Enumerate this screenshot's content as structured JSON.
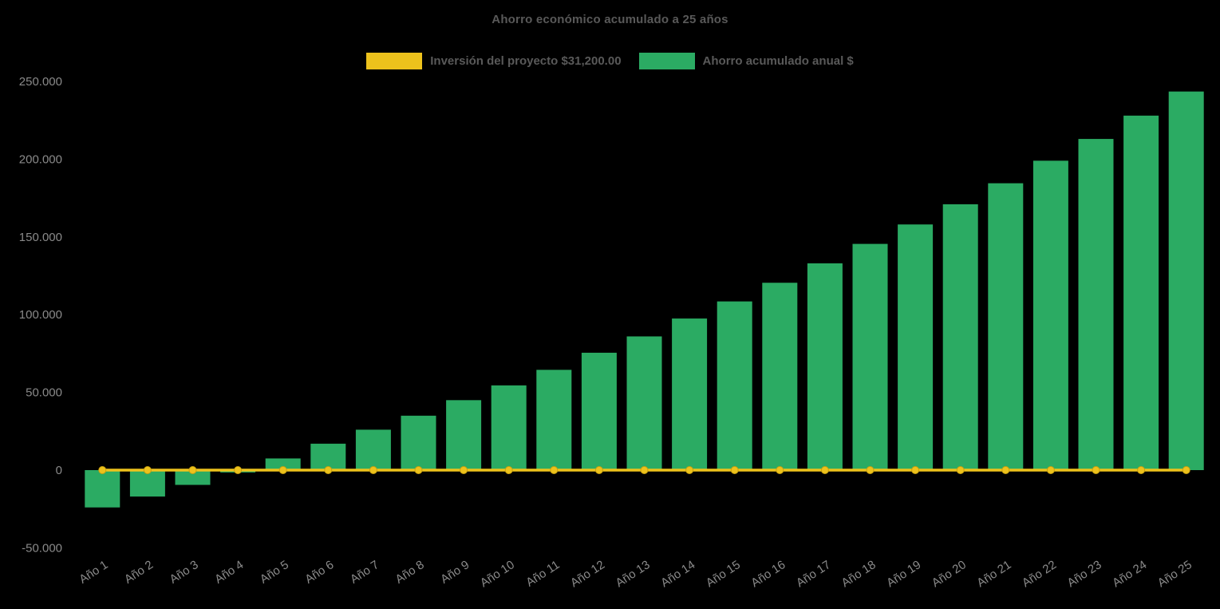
{
  "chart_data": {
    "type": "bar",
    "title": "Ahorro económico acumulado a 25 años",
    "legend_position": "top",
    "grid": false,
    "legend": [
      {
        "label": "Inversión del proyecto $31,200.00",
        "color": "#edc21c",
        "series_type": "line"
      },
      {
        "label": "Ahorro acumulado anual $",
        "color": "#2bab63",
        "series_type": "bar"
      }
    ],
    "categories": [
      "Año 1",
      "Año 2",
      "Año 3",
      "Año 4",
      "Año 5",
      "Año 6",
      "Año 7",
      "Año 8",
      "Año 9",
      "Año 10",
      "Año 11",
      "Año 12",
      "Año 13",
      "Año 14",
      "Año 15",
      "Año 16",
      "Año 17",
      "Año 18",
      "Año 19",
      "Año 20",
      "Año 21",
      "Año 22",
      "Año 23",
      "Año 24",
      "Año 25"
    ],
    "series": [
      {
        "name": "Inversión del proyecto $31,200.00",
        "type": "line",
        "values": [
          0,
          0,
          0,
          0,
          0,
          0,
          0,
          0,
          0,
          0,
          0,
          0,
          0,
          0,
          0,
          0,
          0,
          0,
          0,
          0,
          0,
          0,
          0,
          0,
          0
        ]
      },
      {
        "name": "Ahorro acumulado anual $",
        "type": "bar",
        "values": [
          -24000,
          -17000,
          -9500,
          -1500,
          7500,
          17000,
          26000,
          35000,
          45000,
          54500,
          64500,
          75500,
          86000,
          97500,
          108500,
          120500,
          133000,
          145500,
          158000,
          171000,
          184500,
          199000,
          213000,
          228000,
          243500
        ]
      }
    ],
    "ylim": [
      -50000,
      250000
    ],
    "yticks": {
      "values": [
        250000,
        200000,
        150000,
        100000,
        50000,
        0,
        -50000
      ],
      "labels": [
        "250.000",
        "200.000",
        "150.000",
        "100.000",
        "50.000",
        "0",
        "-50.000"
      ]
    },
    "colors": {
      "background": "#000000",
      "bar": "#2bab63",
      "line": "#edc21c",
      "marker": "#edc21c",
      "marker_stroke": "#c9a00e",
      "title_text": "#595959",
      "axis_text": "#8a8a8a"
    }
  }
}
